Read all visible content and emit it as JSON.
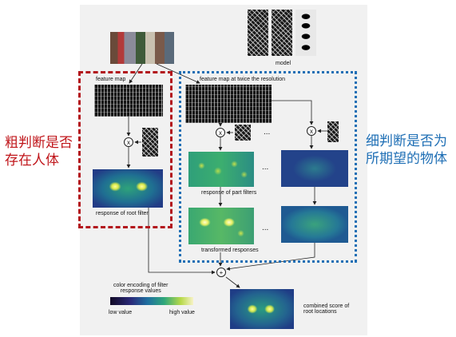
{
  "labels": {
    "model": "model",
    "feature_map": "feature map",
    "feature_map_twice": "feature map at twice the resolution",
    "response_root": "response of root filter",
    "response_part": "response of part filters",
    "transformed": "transformed responses",
    "color_encoding": "color encoding of filter\nresponse values",
    "low_value": "low value",
    "high_value": "high value",
    "combined": "combined score of\nroot locations",
    "dots": "..."
  },
  "annotations": {
    "coarse": "粗判断是否\n存在人体",
    "fine": "细判断是否为\n所期望的物体"
  },
  "operators": {
    "multiply": "x",
    "plus": "+"
  },
  "colors": {
    "red_box": "#b3161c",
    "blue_box": "#1f6fb5",
    "red_text": "#c0161b",
    "blue_text": "#1f6fb5"
  }
}
